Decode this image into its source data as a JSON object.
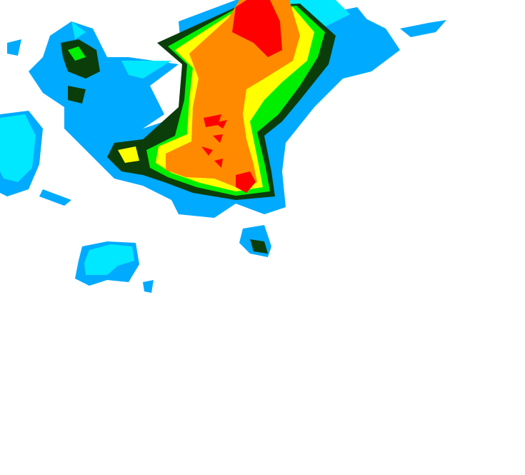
{
  "map": {
    "kind": "precipitation-radar-overlay",
    "palette": {
      "light_blue": "#00aaff",
      "cyan": "#00e8ff",
      "dark_green": "#0b3d0b",
      "green": "#00ee00",
      "yellow": "#ffff00",
      "orange": "#ff8a00",
      "red": "#ff0000"
    }
  }
}
